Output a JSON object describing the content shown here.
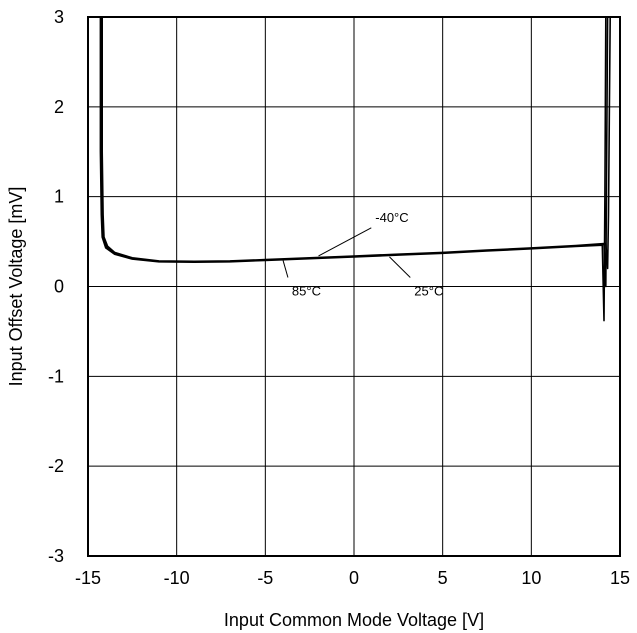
{
  "chart_data": {
    "type": "line",
    "title": "",
    "xlabel": "Input Common Mode Voltage  [V]",
    "ylabel": "Input Offset Voltage  [mV]",
    "xlim": [
      -15,
      15
    ],
    "ylim": [
      -3,
      3
    ],
    "x_ticks": [
      -15,
      -10,
      -5,
      0,
      5,
      10,
      15
    ],
    "y_ticks": [
      -3,
      -2,
      -1,
      0,
      1,
      2,
      3
    ],
    "x_tick_labels": [
      "-15",
      "-10",
      "-5",
      "0",
      "5",
      "10",
      "15"
    ],
    "y_tick_labels": [
      "-3",
      "-2",
      "-1",
      "0",
      "1",
      "2",
      "3"
    ],
    "grid": true,
    "line_color": "#000000",
    "series": [
      {
        "x": [
          -14.2,
          -14.2,
          -14.15,
          -14.1,
          -13.9,
          -13.5,
          -12.5,
          -11,
          -9,
          -7,
          -5,
          -2.5,
          0,
          2.5,
          5,
          7.5,
          10,
          12.5,
          14.2,
          14.3,
          14.35,
          14.4,
          14.45
        ],
        "y": [
          3.0,
          1.5,
          0.8,
          0.55,
          0.45,
          0.38,
          0.32,
          0.285,
          0.28,
          0.285,
          0.3,
          0.32,
          0.34,
          0.36,
          0.38,
          0.405,
          0.43,
          0.455,
          0.48,
          0.2,
          0.8,
          2.0,
          3.0
        ]
      },
      {
        "x": [
          -14.25,
          -14.25,
          -14.2,
          -14.15,
          -13.95,
          -13.5,
          -12.5,
          -11,
          -9,
          -7,
          -5,
          -2.5,
          0,
          2.5,
          5,
          7.5,
          10,
          12.5,
          14.1,
          14.2,
          14.25,
          14.3
        ],
        "y": [
          3.0,
          1.5,
          0.8,
          0.55,
          0.44,
          0.37,
          0.31,
          0.28,
          0.275,
          0.28,
          0.295,
          0.315,
          0.335,
          0.355,
          0.375,
          0.4,
          0.425,
          0.45,
          0.47,
          0.0,
          1.5,
          3.0
        ]
      },
      {
        "x": [
          -14.3,
          -14.3,
          -14.25,
          -14.2,
          -14.0,
          -13.5,
          -12.5,
          -11,
          -9,
          -7,
          -5,
          -2.5,
          0,
          2.5,
          5,
          7.5,
          10,
          12.5,
          14.0,
          14.1,
          14.15,
          14.2
        ],
        "y": [
          3.0,
          1.5,
          0.8,
          0.55,
          0.43,
          0.36,
          0.305,
          0.275,
          0.27,
          0.275,
          0.29,
          0.31,
          0.33,
          0.35,
          0.37,
          0.395,
          0.42,
          0.445,
          0.46,
          -0.38,
          1.0,
          3.0
        ]
      }
    ],
    "annotations": [
      {
        "text": "-40°C",
        "x": 1.2,
        "y": 0.72,
        "pointer_to": [
          -2,
          0.34
        ]
      },
      {
        "text": "85°C",
        "x": -3.5,
        "y": -0.1,
        "pointer_to": [
          -4,
          0.29
        ]
      },
      {
        "text": "25°C",
        "x": 3.4,
        "y": -0.1,
        "pointer_to": [
          2,
          0.33
        ]
      }
    ]
  }
}
